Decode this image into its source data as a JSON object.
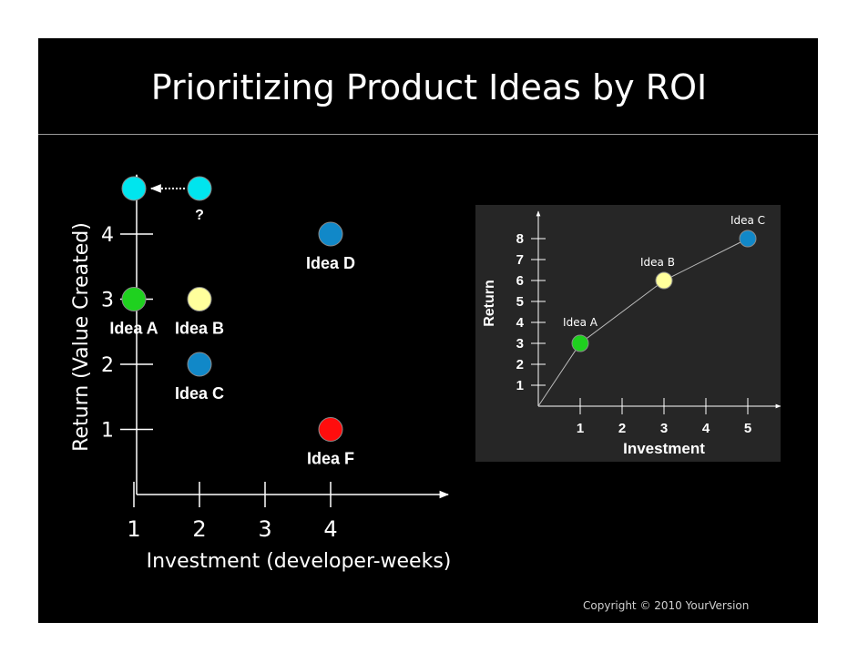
{
  "title": "Prioritizing Product Ideas by ROI",
  "copyright": "Copyright © 2010 YourVersion",
  "question_mark": "?",
  "colors": {
    "background": "#000000",
    "text": "#ffffff",
    "cyan": "#00e5ee",
    "green": "#1fd11f",
    "yellow": "#ffff9c",
    "blue": "#1188c8",
    "red": "#ff0d0d"
  },
  "chart_data": [
    {
      "type": "scatter",
      "title": "",
      "xlabel": "Investment (developer-weeks)",
      "ylabel": "Return (Value Created)",
      "xticks": [
        1,
        2,
        3,
        4
      ],
      "yticks": [
        1,
        2,
        3,
        4
      ],
      "xlim": [
        0.15,
        4.8
      ],
      "ylim": [
        0,
        4.95
      ],
      "series": [
        {
          "name": "Idea A",
          "x": 1,
          "y": 3,
          "color": "#1fd11f",
          "label": "Idea A"
        },
        {
          "name": "Idea B",
          "x": 2,
          "y": 3,
          "color": "#ffff9c",
          "label": "Idea B"
        },
        {
          "name": "Idea C",
          "x": 2,
          "y": 2,
          "color": "#1188c8",
          "label": "Idea C"
        },
        {
          "name": "Idea D",
          "x": 4,
          "y": 4,
          "color": "#1188c8",
          "label": "Idea D"
        },
        {
          "name": "Idea F",
          "x": 4,
          "y": 1,
          "color": "#ff0d0d",
          "label": "Idea F"
        },
        {
          "name": "",
          "x": 2,
          "y": 4.7,
          "color": "#00e5ee",
          "label": "?"
        },
        {
          "name": "",
          "x": 1,
          "y": 4.7,
          "color": "#00e5ee",
          "label": ""
        }
      ],
      "annotations": [
        {
          "type": "dotted-arrow",
          "from": [
            2,
            4.7
          ],
          "to": [
            1,
            4.7
          ]
        }
      ]
    },
    {
      "type": "line",
      "title": "",
      "xlabel": "Investment",
      "ylabel": "Return",
      "xticks": [
        1,
        2,
        3,
        4,
        5
      ],
      "yticks": [
        1,
        2,
        3,
        4,
        5,
        6,
        7,
        8
      ],
      "x": [
        0,
        1,
        3,
        5
      ],
      "y": [
        0,
        3,
        6,
        8
      ],
      "points": [
        {
          "name": "Idea A",
          "x": 1,
          "y": 3,
          "color": "#1fd11f"
        },
        {
          "name": "Idea B",
          "x": 3,
          "y": 6,
          "color": "#ffff9c"
        },
        {
          "name": "Idea C",
          "x": 5,
          "y": 8,
          "color": "#1188c8"
        }
      ],
      "xlim": [
        0,
        5.7
      ],
      "ylim": [
        0,
        9.1
      ]
    }
  ]
}
